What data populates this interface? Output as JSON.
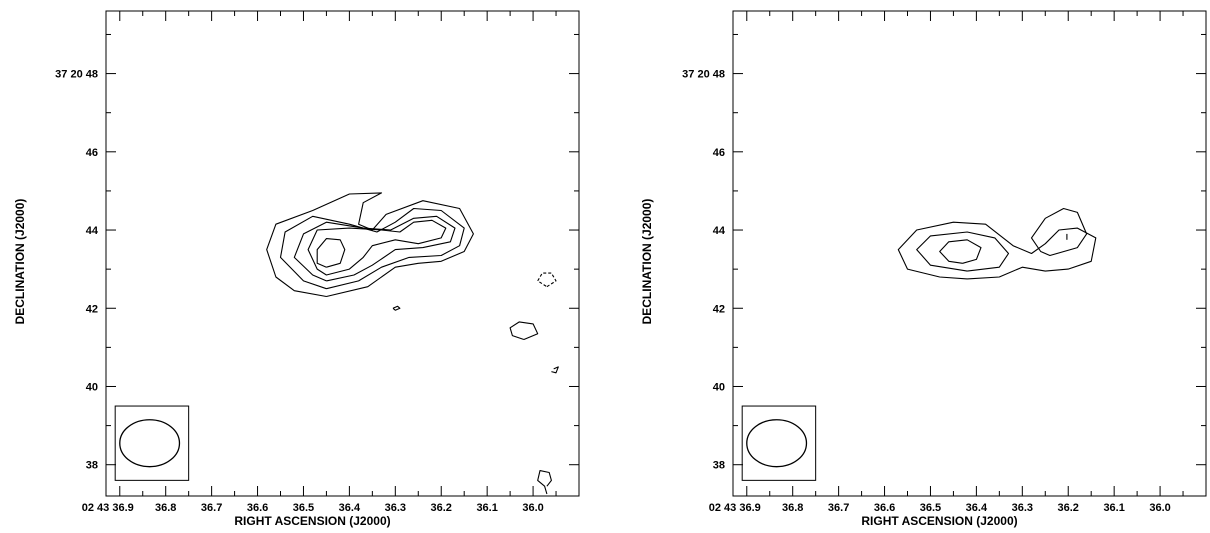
{
  "chart_data": [
    {
      "type": "contour",
      "panel": "left",
      "xlabel": "RIGHT ASCENSION (J2000)",
      "ylabel": "DECLINATION (J2000)",
      "x_tick_labels": [
        {
          "value": 36.9,
          "label": "02 43 36.9"
        },
        {
          "value": 36.8,
          "label": "36.8"
        },
        {
          "value": 36.7,
          "label": "36.7"
        },
        {
          "value": 36.6,
          "label": "36.6"
        },
        {
          "value": 36.5,
          "label": "36.5"
        },
        {
          "value": 36.4,
          "label": "36.4"
        },
        {
          "value": 36.3,
          "label": "36.3"
        },
        {
          "value": 36.2,
          "label": "36.2"
        },
        {
          "value": 36.1,
          "label": "36.1"
        },
        {
          "value": 36.0,
          "label": "36.0"
        }
      ],
      "y_tick_labels": [
        {
          "value": 48,
          "label": "37 20 48"
        },
        {
          "value": 46,
          "label": "46"
        },
        {
          "value": 44,
          "label": "44"
        },
        {
          "value": 42,
          "label": "42"
        },
        {
          "value": 40,
          "label": "40"
        },
        {
          "value": 38,
          "label": "38"
        }
      ],
      "xlim": [
        36.93,
        35.9
      ],
      "ylim": [
        37.2,
        49.6
      ],
      "beam": {
        "ra": 36.835,
        "dec": 38.55,
        "ra_half_width": 0.065,
        "dec_half_height": 0.6
      },
      "beam_box": {
        "ra": [
          36.91,
          36.75
        ],
        "dec": [
          37.6,
          39.5
        ]
      },
      "contours": [
        {
          "level": 1,
          "style": "solid",
          "points": [
            [
              36.45,
              42.3
            ],
            [
              36.36,
              42.55
            ],
            [
              36.3,
              43.05
            ],
            [
              36.25,
              43.15
            ],
            [
              36.2,
              43.2
            ],
            [
              36.15,
              43.45
            ],
            [
              36.13,
              43.9
            ],
            [
              36.16,
              44.55
            ],
            [
              36.24,
              44.75
            ],
            [
              36.32,
              44.4
            ],
            [
              36.35,
              44.0
            ],
            [
              36.38,
              44.15
            ],
            [
              36.37,
              44.7
            ],
            [
              36.33,
              44.95
            ],
            [
              36.4,
              44.92
            ],
            [
              36.48,
              44.5
            ],
            [
              36.56,
              44.15
            ],
            [
              36.58,
              43.5
            ],
            [
              36.56,
              42.8
            ],
            [
              36.52,
              42.45
            ],
            [
              36.45,
              42.3
            ]
          ]
        },
        {
          "level": 2,
          "style": "solid",
          "points": [
            [
              36.45,
              42.5
            ],
            [
              36.38,
              42.7
            ],
            [
              36.33,
              43.05
            ],
            [
              36.27,
              43.3
            ],
            [
              36.2,
              43.35
            ],
            [
              36.16,
              43.6
            ],
            [
              36.15,
              44.05
            ],
            [
              36.2,
              44.5
            ],
            [
              36.26,
              44.55
            ],
            [
              36.3,
              44.2
            ],
            [
              36.34,
              43.95
            ],
            [
              36.4,
              44.15
            ],
            [
              36.48,
              44.35
            ],
            [
              36.54,
              43.95
            ],
            [
              36.55,
              43.3
            ],
            [
              36.5,
              42.7
            ],
            [
              36.45,
              42.5
            ]
          ]
        },
        {
          "level": 3,
          "style": "solid",
          "points": [
            [
              36.45,
              42.7
            ],
            [
              36.39,
              42.85
            ],
            [
              36.35,
              43.1
            ],
            [
              36.3,
              43.5
            ],
            [
              36.24,
              43.55
            ],
            [
              36.18,
              43.7
            ],
            [
              36.17,
              44.05
            ],
            [
              36.21,
              44.35
            ],
            [
              36.26,
              44.3
            ],
            [
              36.31,
              44.0
            ],
            [
              36.37,
              44.05
            ],
            [
              36.45,
              44.2
            ],
            [
              36.5,
              43.9
            ],
            [
              36.52,
              43.3
            ],
            [
              36.48,
              42.85
            ],
            [
              36.45,
              42.7
            ]
          ]
        },
        {
          "level": 4,
          "style": "solid",
          "points": [
            [
              36.45,
              42.85
            ],
            [
              36.4,
              43.0
            ],
            [
              36.37,
              43.3
            ],
            [
              36.35,
              43.6
            ],
            [
              36.3,
              43.75
            ],
            [
              36.25,
              43.65
            ],
            [
              36.2,
              43.8
            ],
            [
              36.19,
              44.05
            ],
            [
              36.22,
              44.25
            ],
            [
              36.26,
              44.2
            ],
            [
              36.29,
              43.95
            ],
            [
              36.33,
              44.0
            ],
            [
              36.4,
              44.05
            ],
            [
              36.47,
              44.0
            ],
            [
              36.49,
              43.5
            ],
            [
              36.47,
              43.0
            ],
            [
              36.45,
              42.85
            ]
          ]
        },
        {
          "level": 5,
          "style": "solid",
          "points": [
            [
              36.45,
              43.05
            ],
            [
              36.42,
              43.15
            ],
            [
              36.41,
              43.5
            ],
            [
              36.42,
              43.75
            ],
            [
              36.45,
              43.78
            ],
            [
              36.47,
              43.5
            ],
            [
              36.47,
              43.15
            ],
            [
              36.45,
              43.05
            ]
          ]
        },
        {
          "level": 1,
          "style": "solid",
          "points": [
            [
              36.305,
              42.0
            ],
            [
              36.295,
              42.05
            ],
            [
              36.29,
              42.0
            ],
            [
              36.3,
              41.95
            ],
            [
              36.305,
              42.0
            ]
          ]
        },
        {
          "level": 1,
          "style": "solid",
          "points": [
            [
              36.02,
              41.2
            ],
            [
              35.99,
              41.35
            ],
            [
              36.0,
              41.6
            ],
            [
              36.03,
              41.65
            ],
            [
              36.05,
              41.5
            ],
            [
              36.045,
              41.3
            ],
            [
              36.02,
              41.2
            ]
          ]
        },
        {
          "level": -1,
          "style": "dashed",
          "points": [
            [
              35.97,
              42.55
            ],
            [
              35.95,
              42.7
            ],
            [
              35.96,
              42.9
            ],
            [
              35.98,
              42.9
            ],
            [
              35.99,
              42.7
            ],
            [
              35.97,
              42.55
            ]
          ]
        },
        {
          "level": 1,
          "style": "solid",
          "points": [
            [
              35.955,
              40.45
            ],
            [
              35.945,
              40.5
            ],
            [
              35.95,
              40.35
            ],
            [
              35.96,
              40.38
            ]
          ]
        },
        {
          "level": 1,
          "style": "solid",
          "points": [
            [
              35.97,
              37.45
            ],
            [
              35.96,
              37.6
            ],
            [
              35.965,
              37.8
            ],
            [
              35.985,
              37.85
            ],
            [
              35.99,
              37.6
            ],
            [
              35.975,
              37.45
            ],
            [
              35.97,
              37.25
            ]
          ]
        }
      ]
    },
    {
      "type": "contour",
      "panel": "right",
      "xlabel": "RIGHT ASCENSION (J2000)",
      "ylabel": "DECLINATION (J2000)",
      "x_tick_labels": [
        {
          "value": 36.9,
          "label": "02 43 36.9"
        },
        {
          "value": 36.8,
          "label": "36.8"
        },
        {
          "value": 36.7,
          "label": "36.7"
        },
        {
          "value": 36.6,
          "label": "36.6"
        },
        {
          "value": 36.5,
          "label": "36.5"
        },
        {
          "value": 36.4,
          "label": "36.4"
        },
        {
          "value": 36.3,
          "label": "36.3"
        },
        {
          "value": 36.2,
          "label": "36.2"
        },
        {
          "value": 36.1,
          "label": "36.1"
        },
        {
          "value": 36.0,
          "label": "36.0"
        }
      ],
      "y_tick_labels": [
        {
          "value": 48,
          "label": "37 20 48"
        },
        {
          "value": 46,
          "label": "46"
        },
        {
          "value": 44,
          "label": "44"
        },
        {
          "value": 42,
          "label": "42"
        },
        {
          "value": 40,
          "label": "40"
        },
        {
          "value": 38,
          "label": "38"
        }
      ],
      "xlim": [
        36.93,
        35.9
      ],
      "ylim": [
        37.2,
        49.6
      ],
      "beam": {
        "ra": 36.835,
        "dec": 38.55,
        "ra_half_width": 0.065,
        "dec_half_height": 0.6
      },
      "beam_box": {
        "ra": [
          36.91,
          36.75
        ],
        "dec": [
          37.6,
          39.5
        ]
      },
      "contours": [
        {
          "level": 1,
          "style": "solid",
          "points": [
            [
              36.42,
              42.75
            ],
            [
              36.35,
              42.8
            ],
            [
              36.3,
              43.05
            ],
            [
              36.25,
              42.95
            ],
            [
              36.2,
              43.0
            ],
            [
              36.15,
              43.2
            ],
            [
              36.14,
              43.8
            ],
            [
              36.18,
              44.05
            ],
            [
              36.22,
              44.0
            ],
            [
              36.25,
              43.65
            ],
            [
              36.28,
              43.4
            ],
            [
              36.32,
              43.6
            ],
            [
              36.38,
              44.15
            ],
            [
              36.45,
              44.2
            ],
            [
              36.53,
              44.0
            ],
            [
              36.57,
              43.5
            ],
            [
              36.55,
              43.0
            ],
            [
              36.48,
              42.8
            ],
            [
              36.42,
              42.75
            ]
          ]
        },
        {
          "level": 2,
          "style": "solid",
          "points": [
            [
              36.42,
              42.95
            ],
            [
              36.35,
              43.05
            ],
            [
              36.33,
              43.4
            ],
            [
              36.36,
              43.8
            ],
            [
              36.42,
              43.95
            ],
            [
              36.5,
              43.85
            ],
            [
              36.53,
              43.5
            ],
            [
              36.5,
              43.1
            ],
            [
              36.42,
              42.95
            ]
          ]
        },
        {
          "level": 3,
          "style": "solid",
          "points": [
            [
              36.43,
              43.15
            ],
            [
              36.4,
              43.25
            ],
            [
              36.39,
              43.55
            ],
            [
              36.42,
              43.75
            ],
            [
              36.46,
              43.7
            ],
            [
              36.48,
              43.45
            ],
            [
              36.46,
              43.2
            ],
            [
              36.43,
              43.15
            ]
          ]
        },
        {
          "level": 2,
          "style": "solid",
          "points": [
            [
              36.24,
              43.35
            ],
            [
              36.18,
              43.55
            ],
            [
              36.16,
              43.9
            ],
            [
              36.18,
              44.45
            ],
            [
              36.21,
              44.55
            ],
            [
              36.25,
              44.3
            ],
            [
              36.28,
              43.8
            ],
            [
              36.26,
              43.45
            ],
            [
              36.24,
              43.35
            ]
          ]
        },
        {
          "level": 3,
          "style": "solid",
          "points": [
            [
              36.203,
              43.75
            ],
            [
              36.203,
              43.9
            ]
          ]
        }
      ]
    }
  ]
}
